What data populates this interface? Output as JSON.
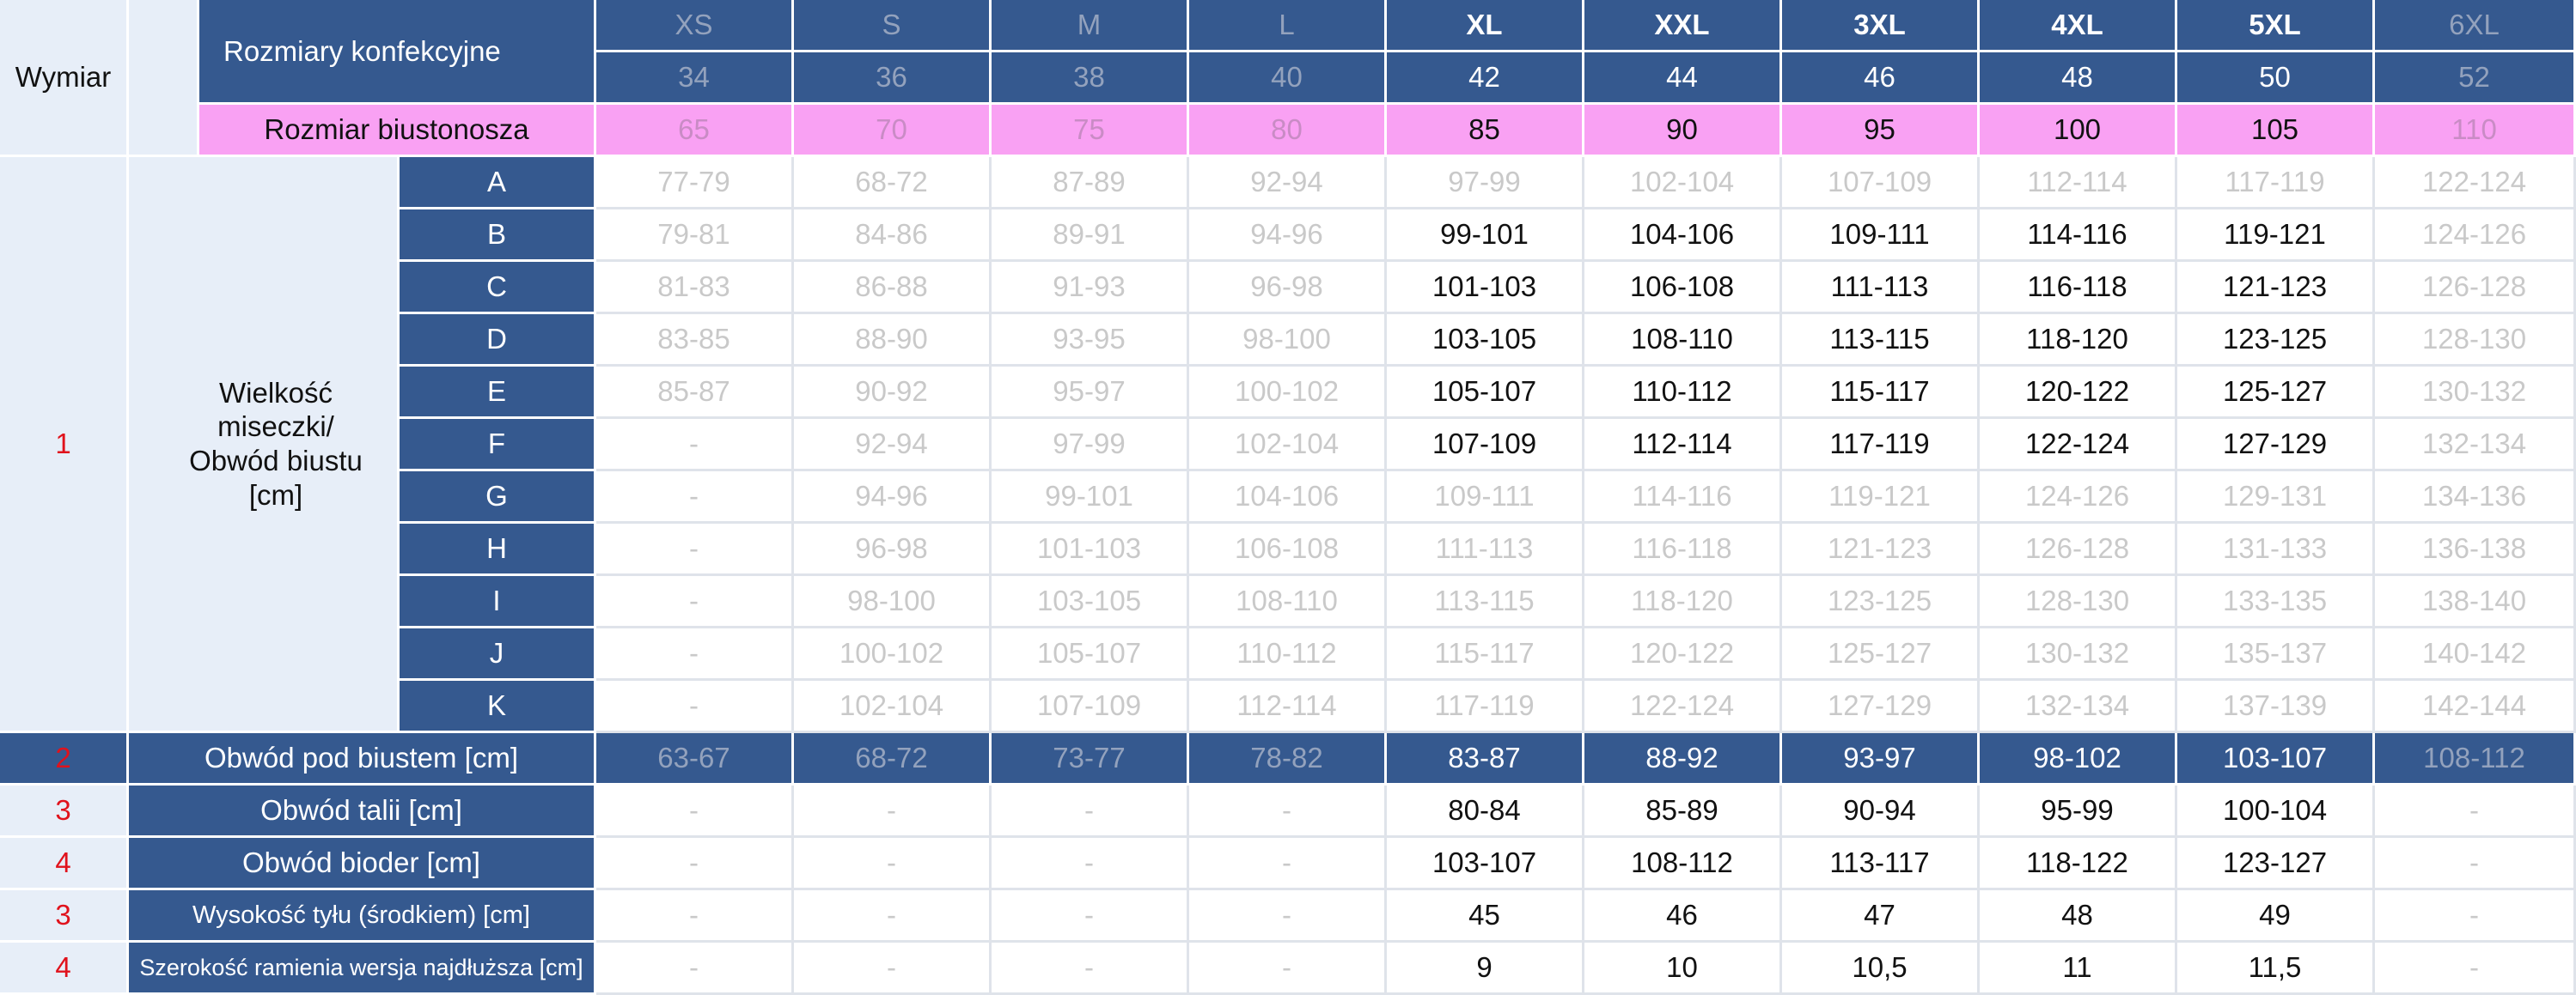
{
  "header": {
    "wymiar_label": "Wymiar",
    "konfekcja_label": "Rozmiary konfekcyjne",
    "biustonosz_label": "Rozmiar biustonosza"
  },
  "sizes": [
    {
      "letter": "XS",
      "num": "34",
      "bra": "65",
      "active": false
    },
    {
      "letter": "S",
      "num": "36",
      "bra": "70",
      "active": false
    },
    {
      "letter": "M",
      "num": "38",
      "bra": "75",
      "active": false
    },
    {
      "letter": "L",
      "num": "40",
      "bra": "80",
      "active": false
    },
    {
      "letter": "XL",
      "num": "42",
      "bra": "85",
      "active": true
    },
    {
      "letter": "XXL",
      "num": "44",
      "bra": "90",
      "active": true
    },
    {
      "letter": "3XL",
      "num": "46",
      "bra": "95",
      "active": true
    },
    {
      "letter": "4XL",
      "num": "48",
      "bra": "100",
      "active": true
    },
    {
      "letter": "5XL",
      "num": "50",
      "bra": "105",
      "active": true
    },
    {
      "letter": "6XL",
      "num": "52",
      "bra": "110",
      "active": false
    }
  ],
  "bust": {
    "number": "1",
    "label": "Wielkość miseczki/ Obwód biustu [cm]",
    "rows": [
      {
        "cup": "A",
        "values": [
          "77-79",
          "68-72",
          "87-89",
          "92-94",
          "97-99",
          "102-104",
          "107-109",
          "112-114",
          "117-119",
          "122-124"
        ],
        "active": [
          false,
          false,
          false,
          false,
          false,
          false,
          false,
          false,
          false,
          false
        ]
      },
      {
        "cup": "B",
        "values": [
          "79-81",
          "84-86",
          "89-91",
          "94-96",
          "99-101",
          "104-106",
          "109-111",
          "114-116",
          "119-121",
          "124-126"
        ],
        "active": [
          false,
          false,
          false,
          false,
          true,
          true,
          true,
          true,
          true,
          false
        ]
      },
      {
        "cup": "C",
        "values": [
          "81-83",
          "86-88",
          "91-93",
          "96-98",
          "101-103",
          "106-108",
          "111-113",
          "116-118",
          "121-123",
          "126-128"
        ],
        "active": [
          false,
          false,
          false,
          false,
          true,
          true,
          true,
          true,
          true,
          false
        ]
      },
      {
        "cup": "D",
        "values": [
          "83-85",
          "88-90",
          "93-95",
          "98-100",
          "103-105",
          "108-110",
          "113-115",
          "118-120",
          "123-125",
          "128-130"
        ],
        "active": [
          false,
          false,
          false,
          false,
          true,
          true,
          true,
          true,
          true,
          false
        ]
      },
      {
        "cup": "E",
        "values": [
          "85-87",
          "90-92",
          "95-97",
          "100-102",
          "105-107",
          "110-112",
          "115-117",
          "120-122",
          "125-127",
          "130-132"
        ],
        "active": [
          false,
          false,
          false,
          false,
          true,
          true,
          true,
          true,
          true,
          false
        ]
      },
      {
        "cup": "F",
        "values": [
          "-",
          "92-94",
          "97-99",
          "102-104",
          "107-109",
          "112-114",
          "117-119",
          "122-124",
          "127-129",
          "132-134"
        ],
        "active": [
          false,
          false,
          false,
          false,
          true,
          true,
          true,
          true,
          true,
          false
        ]
      },
      {
        "cup": "G",
        "values": [
          "-",
          "94-96",
          "99-101",
          "104-106",
          "109-111",
          "114-116",
          "119-121",
          "124-126",
          "129-131",
          "134-136"
        ],
        "active": [
          false,
          false,
          false,
          false,
          false,
          false,
          false,
          false,
          false,
          false
        ]
      },
      {
        "cup": "H",
        "values": [
          "-",
          "96-98",
          "101-103",
          "106-108",
          "111-113",
          "116-118",
          "121-123",
          "126-128",
          "131-133",
          "136-138"
        ],
        "active": [
          false,
          false,
          false,
          false,
          false,
          false,
          false,
          false,
          false,
          false
        ]
      },
      {
        "cup": "I",
        "values": [
          "-",
          "98-100",
          "103-105",
          "108-110",
          "113-115",
          "118-120",
          "123-125",
          "128-130",
          "133-135",
          "138-140"
        ],
        "active": [
          false,
          false,
          false,
          false,
          false,
          false,
          false,
          false,
          false,
          false
        ]
      },
      {
        "cup": "J",
        "values": [
          "-",
          "100-102",
          "105-107",
          "110-112",
          "115-117",
          "120-122",
          "125-127",
          "130-132",
          "135-137",
          "140-142"
        ],
        "active": [
          false,
          false,
          false,
          false,
          false,
          false,
          false,
          false,
          false,
          false
        ]
      },
      {
        "cup": "K",
        "values": [
          "-",
          "102-104",
          "107-109",
          "112-114",
          "117-119",
          "122-124",
          "127-129",
          "132-134",
          "137-139",
          "142-144"
        ],
        "active": [
          false,
          false,
          false,
          false,
          false,
          false,
          false,
          false,
          false,
          false
        ]
      }
    ]
  },
  "measures": [
    {
      "number": "2",
      "label": "Obwód pod biustem [cm]",
      "blue_row": true,
      "values": [
        "63-67",
        "68-72",
        "73-77",
        "78-82",
        "83-87",
        "88-92",
        "93-97",
        "98-102",
        "103-107",
        "108-112"
      ]
    },
    {
      "number": "3",
      "label": "Obwód talii [cm]",
      "blue_row": false,
      "values": [
        "-",
        "-",
        "-",
        "-",
        "80-84",
        "85-89",
        "90-94",
        "95-99",
        "100-104",
        "-"
      ]
    },
    {
      "number": "4",
      "label": "Obwód bioder [cm]",
      "blue_row": false,
      "values": [
        "-",
        "-",
        "-",
        "-",
        "103-107",
        "108-112",
        "113-117",
        "118-122",
        "123-127",
        "-"
      ]
    },
    {
      "number": "3",
      "label": "Wysokość tyłu (środkiem) [cm]",
      "blue_row": false,
      "values": [
        "-",
        "-",
        "-",
        "-",
        "45",
        "46",
        "47",
        "48",
        "49",
        "-"
      ]
    },
    {
      "number": "4",
      "label": "Szerokość ramienia wersja najdłuższa [cm]",
      "blue_row": false,
      "values": [
        "-",
        "-",
        "-",
        "-",
        "9",
        "10",
        "10,5",
        "11",
        "11,5",
        "-"
      ]
    }
  ],
  "colors": {
    "header_blue": "#35598f",
    "bra_pink": "#f9a1f3",
    "label_bg": "#e7eef8",
    "row_number_red": "#e0121c",
    "inactive_text": "#c9c9c9"
  }
}
